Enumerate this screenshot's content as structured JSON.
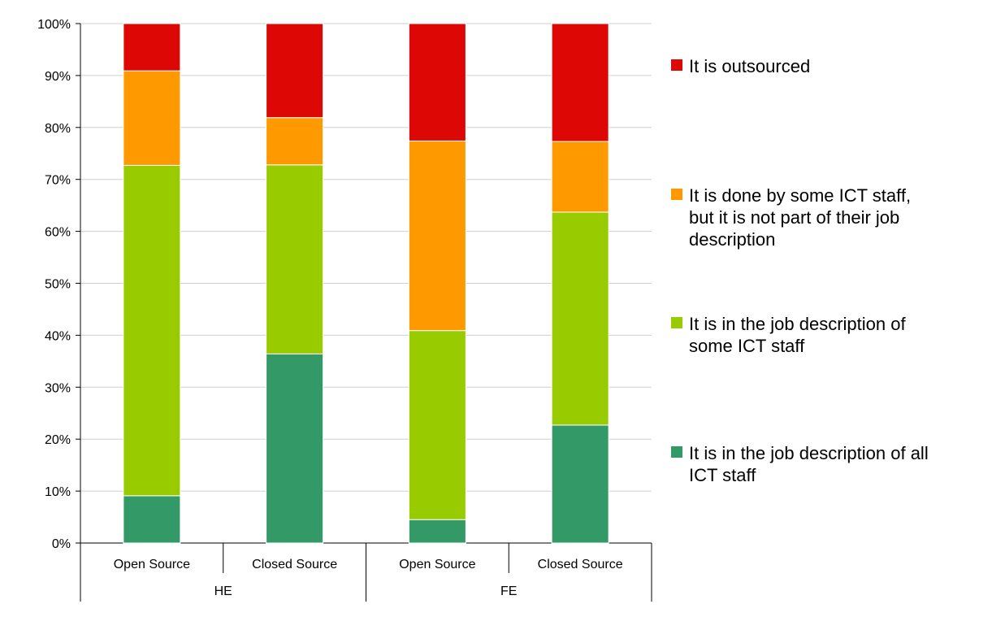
{
  "chart_data": {
    "type": "bar",
    "stacked": true,
    "percent": true,
    "title": "",
    "xlabel": "",
    "ylabel": "",
    "ylim": [
      0,
      100
    ],
    "y_ticks": [
      "0%",
      "10%",
      "20%",
      "30%",
      "40%",
      "50%",
      "60%",
      "70%",
      "80%",
      "90%",
      "100%"
    ],
    "categories": [
      "Open Source",
      "Closed Source",
      "Open Source",
      "Closed Source"
    ],
    "groups": [
      {
        "label": "HE",
        "span": 2
      },
      {
        "label": "FE",
        "span": 2
      }
    ],
    "series": [
      {
        "name": "It is in the job description of all ICT staff",
        "color": "#339966",
        "values": [
          9.1,
          36.4,
          4.5,
          22.7
        ]
      },
      {
        "name": "It is in the job description of some ICT staff",
        "color": "#99cc00",
        "values": [
          63.6,
          36.4,
          36.4,
          41.0
        ]
      },
      {
        "name": "It is done by some ICT staff, but it is not part of their job description",
        "color": "#ff9900",
        "values": [
          18.2,
          9.1,
          36.5,
          13.6
        ]
      },
      {
        "name": "It is outsourced",
        "color": "#dd0806",
        "values": [
          9.1,
          18.1,
          22.6,
          22.7
        ]
      }
    ],
    "legend": {
      "position": "right",
      "order": [
        3,
        2,
        1,
        0
      ],
      "entries": [
        {
          "text": "It is outsourced",
          "lines": [
            "It is outsourced"
          ]
        },
        {
          "text": "It is done by some ICT staff, but it is not part of their job description",
          "lines": [
            "It is done by some ICT staff,",
            "but it is not part of their job",
            "description"
          ]
        },
        {
          "text": "It is in the job description of some ICT staff",
          "lines": [
            "It is in the job description of",
            "some ICT staff"
          ]
        },
        {
          "text": "It is in the job description of all ICT staff",
          "lines": [
            "It is in the job description of all",
            "ICT staff"
          ]
        }
      ]
    },
    "grid": true
  }
}
